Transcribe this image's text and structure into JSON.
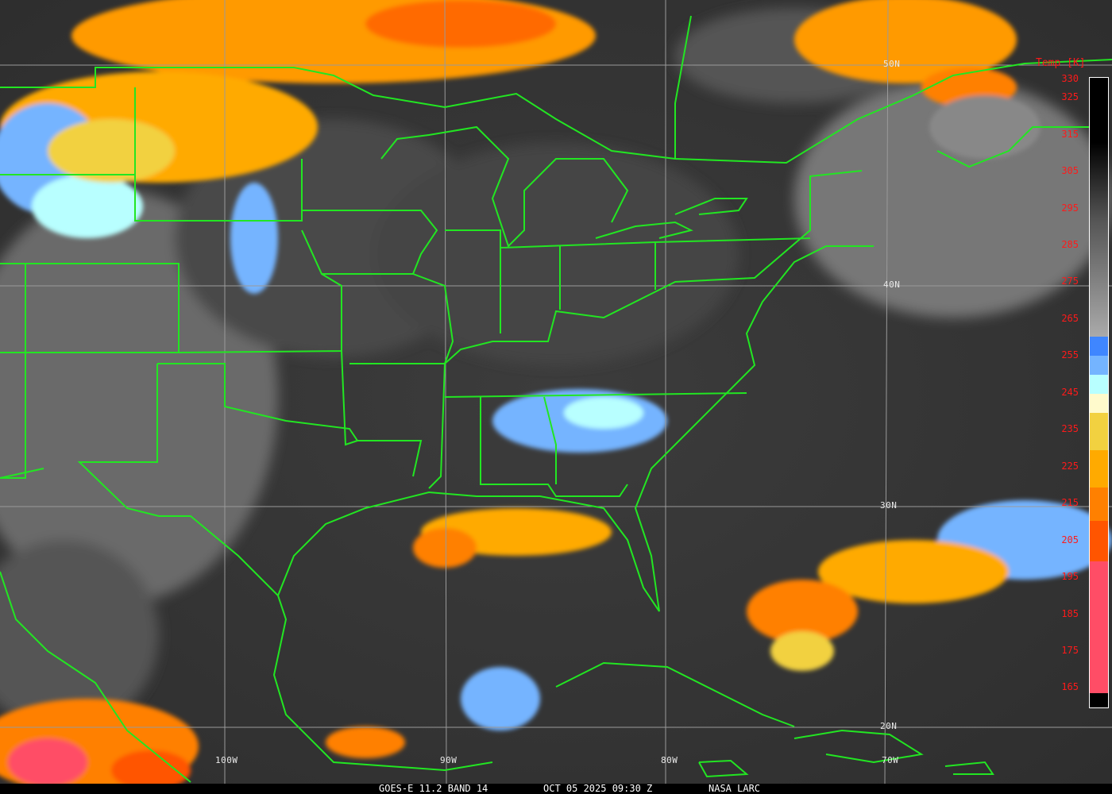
{
  "caption": {
    "product": "GOES-E 11.2 BAND 14",
    "datetime": "OCT 05 2025 09:30 Z",
    "credit": "NASA LARC"
  },
  "gridlabels": {
    "lat": [
      "50N",
      "40N",
      "30N",
      "20N"
    ],
    "lon": [
      "100W",
      "90W",
      "80W",
      "70W"
    ]
  },
  "colorbar": {
    "title": "Temp [K]",
    "ticks": [
      "330",
      "325",
      "315",
      "305",
      "295",
      "285",
      "275",
      "265",
      "255",
      "245",
      "235",
      "225",
      "215",
      "205",
      "195",
      "185",
      "175",
      "165"
    ],
    "colors": {
      "blue": "#3f86ff",
      "light_blue": "#74b4ff",
      "cyan": "#b8ffff",
      "cream": "#fffacc",
      "yellow": "#f2d140",
      "amber": "#ffaa00",
      "orange": "#ff8000",
      "red_orange": "#ff5500",
      "pink": "#ff4d66"
    }
  },
  "colors": {
    "borders": "#22e622",
    "grid": "#9a9a9a",
    "tick_labels": "#ff1a1a"
  }
}
